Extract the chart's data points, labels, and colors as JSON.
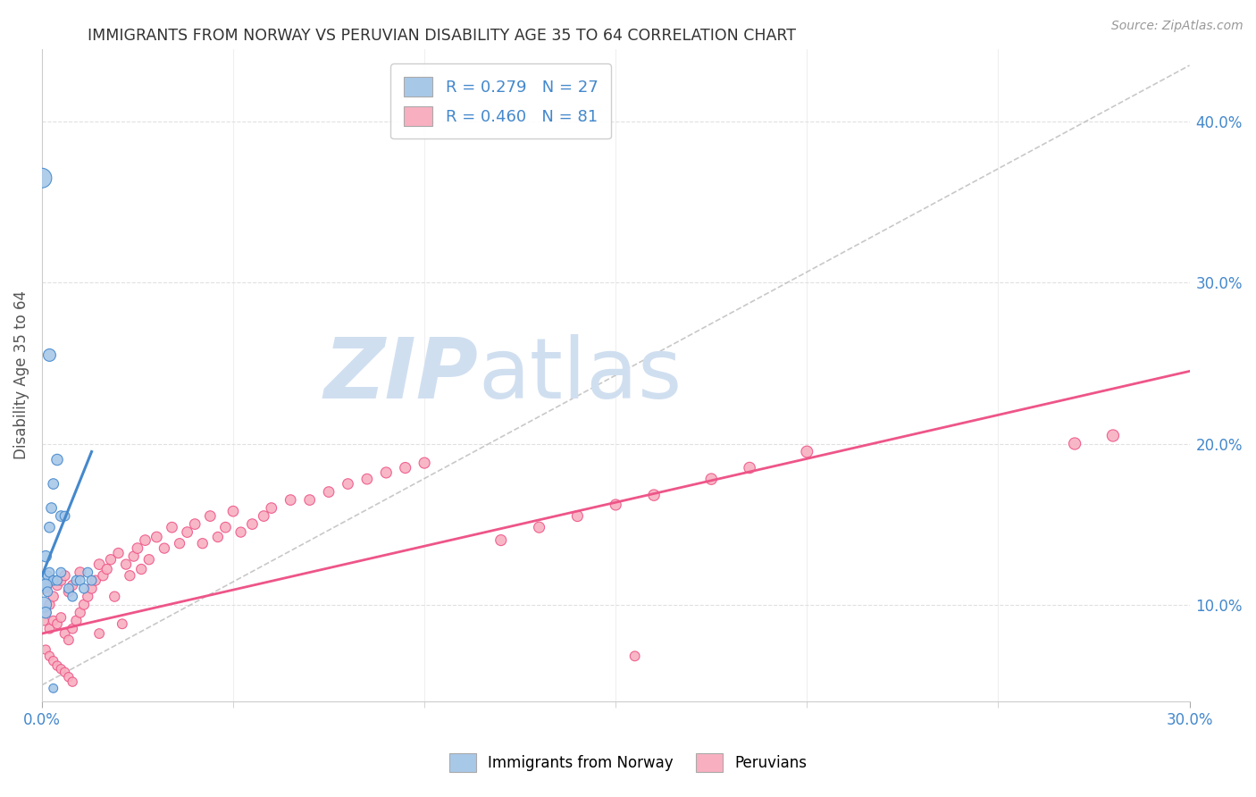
{
  "title": "IMMIGRANTS FROM NORWAY VS PERUVIAN DISABILITY AGE 35 TO 64 CORRELATION CHART",
  "source": "Source: ZipAtlas.com",
  "ylabel": "Disability Age 35 to 64",
  "ylabel_right_ticks": [
    "10.0%",
    "20.0%",
    "30.0%",
    "40.0%"
  ],
  "ylabel_right_vals": [
    0.1,
    0.2,
    0.3,
    0.4
  ],
  "xlim": [
    0.0,
    0.3
  ],
  "ylim": [
    0.04,
    0.445
  ],
  "norway_R": "0.279",
  "norway_N": "27",
  "peru_R": "0.460",
  "peru_N": "81",
  "norway_color": "#a8c8e8",
  "peru_color": "#f8b0c0",
  "norway_line_color": "#4488cc",
  "peru_line_color": "#ee5588",
  "dashed_line_color": "#bbbbbb",
  "background_color": "#ffffff",
  "grid_color": "#e0e0e0",
  "watermark_zip": "ZIP",
  "watermark_atlas": "atlas",
  "watermark_color": "#d0dff0",
  "legend_norway_label": "R = 0.279   N = 27",
  "legend_peru_label": "R = 0.460   N = 81",
  "norway_x": [
    0.0005,
    0.001,
    0.0015,
    0.002,
    0.002,
    0.0025,
    0.003,
    0.003,
    0.004,
    0.004,
    0.005,
    0.005,
    0.006,
    0.007,
    0.008,
    0.009,
    0.01,
    0.011,
    0.012,
    0.013,
    0.0005,
    0.001,
    0.001,
    0.0015,
    0.002,
    0.0,
    0.003
  ],
  "norway_y": [
    0.115,
    0.13,
    0.118,
    0.148,
    0.12,
    0.16,
    0.115,
    0.175,
    0.19,
    0.115,
    0.155,
    0.12,
    0.155,
    0.11,
    0.105,
    0.115,
    0.115,
    0.11,
    0.12,
    0.115,
    0.1,
    0.112,
    0.095,
    0.108,
    0.255,
    0.365,
    0.048
  ],
  "norway_sizes": [
    180,
    80,
    60,
    70,
    60,
    70,
    60,
    70,
    80,
    60,
    70,
    60,
    60,
    60,
    60,
    60,
    60,
    60,
    60,
    60,
    150,
    100,
    80,
    60,
    100,
    250,
    50
  ],
  "peru_x": [
    0.0005,
    0.001,
    0.001,
    0.002,
    0.002,
    0.003,
    0.003,
    0.004,
    0.004,
    0.005,
    0.005,
    0.006,
    0.006,
    0.007,
    0.007,
    0.008,
    0.008,
    0.009,
    0.01,
    0.01,
    0.011,
    0.012,
    0.013,
    0.014,
    0.015,
    0.015,
    0.016,
    0.017,
    0.018,
    0.019,
    0.02,
    0.021,
    0.022,
    0.023,
    0.024,
    0.025,
    0.026,
    0.027,
    0.028,
    0.03,
    0.032,
    0.034,
    0.036,
    0.038,
    0.04,
    0.042,
    0.044,
    0.046,
    0.048,
    0.05,
    0.052,
    0.055,
    0.058,
    0.06,
    0.065,
    0.07,
    0.075,
    0.08,
    0.085,
    0.09,
    0.095,
    0.1,
    0.001,
    0.002,
    0.003,
    0.004,
    0.005,
    0.006,
    0.007,
    0.008,
    0.12,
    0.13,
    0.14,
    0.15,
    0.16,
    0.175,
    0.185,
    0.2,
    0.27,
    0.28,
    0.155
  ],
  "peru_y": [
    0.09,
    0.095,
    0.11,
    0.1,
    0.085,
    0.105,
    0.09,
    0.112,
    0.088,
    0.115,
    0.092,
    0.118,
    0.082,
    0.108,
    0.078,
    0.112,
    0.085,
    0.09,
    0.095,
    0.12,
    0.1,
    0.105,
    0.11,
    0.115,
    0.125,
    0.082,
    0.118,
    0.122,
    0.128,
    0.105,
    0.132,
    0.088,
    0.125,
    0.118,
    0.13,
    0.135,
    0.122,
    0.14,
    0.128,
    0.142,
    0.135,
    0.148,
    0.138,
    0.145,
    0.15,
    0.138,
    0.155,
    0.142,
    0.148,
    0.158,
    0.145,
    0.15,
    0.155,
    0.16,
    0.165,
    0.165,
    0.17,
    0.175,
    0.178,
    0.182,
    0.185,
    0.188,
    0.072,
    0.068,
    0.065,
    0.062,
    0.06,
    0.058,
    0.055,
    0.052,
    0.14,
    0.148,
    0.155,
    0.162,
    0.168,
    0.178,
    0.185,
    0.195,
    0.2,
    0.205,
    0.068
  ],
  "peru_sizes": [
    60,
    70,
    60,
    65,
    60,
    65,
    60,
    65,
    60,
    65,
    60,
    65,
    60,
    65,
    60,
    65,
    60,
    65,
    65,
    70,
    65,
    65,
    65,
    65,
    70,
    60,
    65,
    65,
    65,
    65,
    65,
    60,
    65,
    65,
    65,
    70,
    65,
    70,
    65,
    70,
    65,
    70,
    65,
    70,
    70,
    65,
    70,
    65,
    70,
    70,
    65,
    70,
    70,
    70,
    70,
    70,
    70,
    70,
    70,
    75,
    75,
    75,
    55,
    55,
    55,
    55,
    55,
    55,
    55,
    55,
    75,
    75,
    75,
    75,
    80,
    80,
    80,
    85,
    90,
    90,
    60
  ],
  "norway_trend_x": [
    0.0,
    0.013
  ],
  "norway_trend_y": [
    0.118,
    0.195
  ],
  "peru_trend_x": [
    0.0,
    0.3
  ],
  "peru_trend_y": [
    0.082,
    0.245
  ]
}
